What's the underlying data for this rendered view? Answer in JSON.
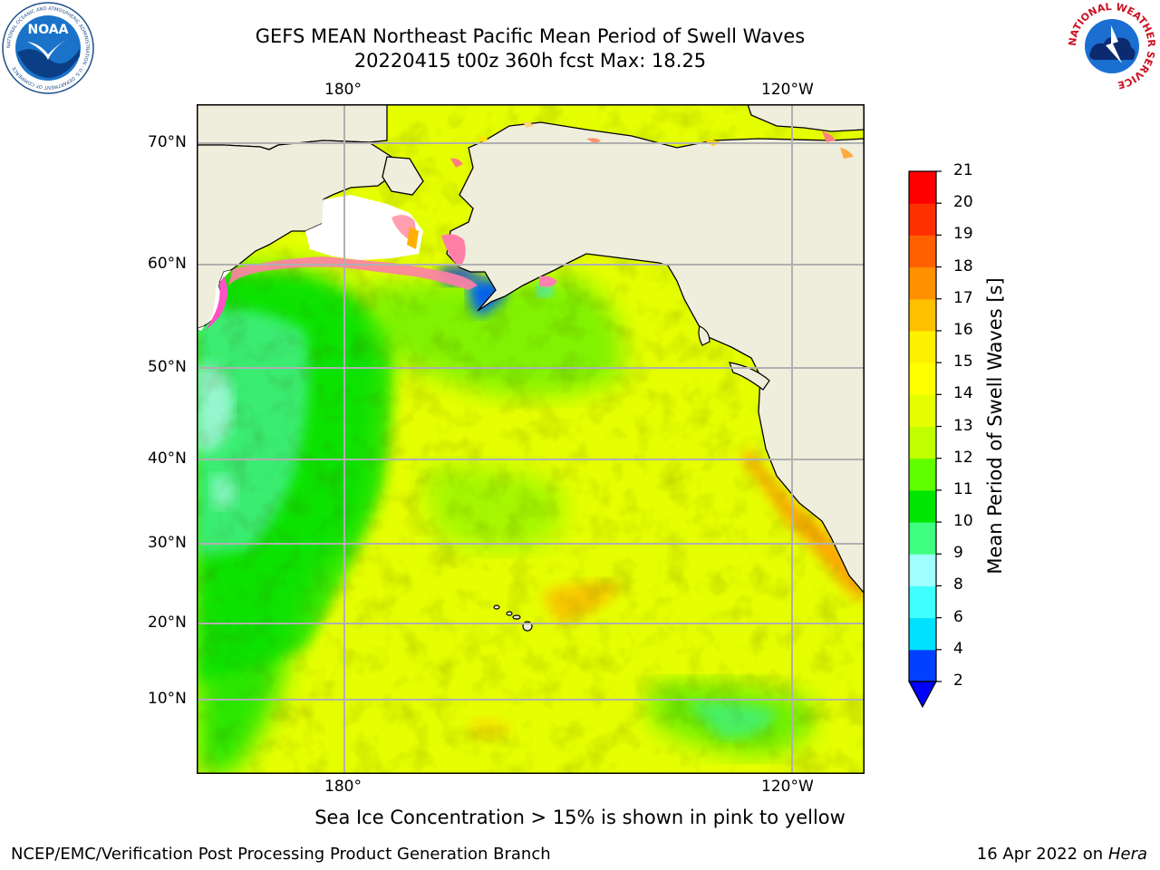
{
  "header": {
    "title_line1": "GEFS MEAN Northeast Pacific Mean Period of Swell Waves",
    "title_line2": "20220415 t00z 360h fcst   Max: 18.25"
  },
  "logos": {
    "left": {
      "name": "NOAA",
      "text": "NOAA",
      "ring_text": "NATIONAL OCEANIC AND ATMOSPHERIC ADMINISTRATION · U.S. DEPARTMENT OF COMMERCE"
    },
    "right": {
      "name": "National Weather Service",
      "ring_text": "NATIONAL WEATHER SERVICE"
    }
  },
  "map": {
    "lon_labels_top": [
      "180°",
      "120°W"
    ],
    "lon_labels_bottom": [
      "180°",
      "120°W"
    ],
    "lat_labels": [
      "70°N",
      "60°N",
      "50°N",
      "40°N",
      "30°N",
      "20°N",
      "10°N"
    ],
    "colors": {
      "land": "#efeedc",
      "ocean_base": "#e6ff00",
      "grid": "#b0b0b0"
    }
  },
  "colorbar": {
    "label": "Mean Period of Swell Waves [s]",
    "ticks": [
      "2",
      "4",
      "6",
      "8",
      "9",
      "10",
      "11",
      "12",
      "13",
      "14",
      "15",
      "16",
      "17",
      "18",
      "19",
      "20",
      "21"
    ],
    "colors": [
      "#0040ff",
      "#00e0ff",
      "#40ffff",
      "#a0ffff",
      "#40ff80",
      "#00e600",
      "#60ff00",
      "#c0ff00",
      "#e6ff00",
      "#ffff00",
      "#fff000",
      "#ffc000",
      "#ff9000",
      "#ff6000",
      "#ff3000",
      "#ff0000"
    ],
    "under_color": "#0000ff"
  },
  "caption": "Sea Ice Concentration > 15% is shown in pink to yellow",
  "footer": {
    "left": "NCEP/EMC/Verification Post Processing Product Generation Branch",
    "right_prefix": "16 Apr 2022 on ",
    "right_italic": "Hera"
  }
}
